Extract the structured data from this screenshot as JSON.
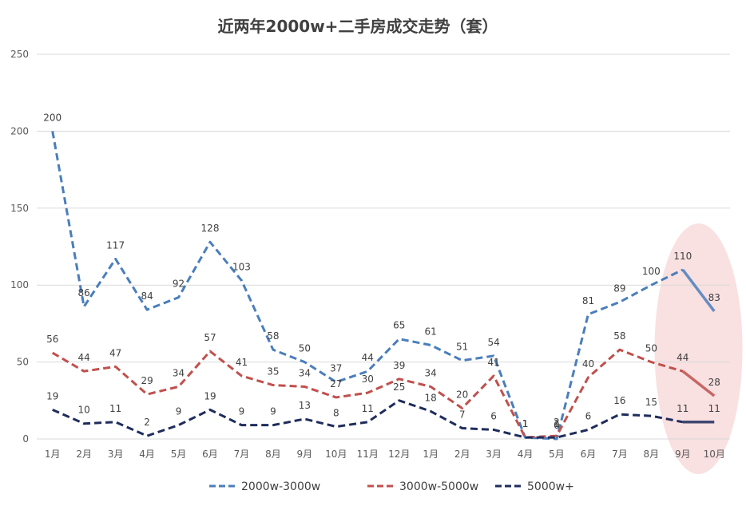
{
  "chart_data": {
    "type": "line",
    "title": "近两年2000w+二手房成交走势（套）",
    "xlabel": "",
    "ylabel": "",
    "ylim": [
      0,
      250
    ],
    "yticks": [
      0,
      50,
      100,
      150,
      200,
      250
    ],
    "grid": true,
    "legend_position": "bottom",
    "categories": [
      "1月",
      "2月",
      "3月",
      "4月",
      "5月",
      "6月",
      "7月",
      "8月",
      "9月",
      "10月",
      "11月",
      "12月",
      "1月",
      "2月",
      "3月",
      "4月",
      "5月",
      "6月",
      "7月",
      "8月",
      "9月",
      "10月"
    ],
    "series": [
      {
        "name": "2000w-3000w",
        "color": "#4a7ebb",
        "values": [
          200,
          86,
          117,
          84,
          92,
          128,
          103,
          58,
          50,
          37,
          44,
          65,
          61,
          51,
          54,
          1,
          0,
          81,
          89,
          100,
          110,
          83
        ]
      },
      {
        "name": "3000w-5000w",
        "color": "#c0504d",
        "values": [
          56,
          44,
          47,
          29,
          34,
          57,
          41,
          35,
          34,
          27,
          30,
          39,
          34,
          20,
          41,
          1,
          2,
          40,
          58,
          50,
          44,
          28
        ]
      },
      {
        "name": "5000w+",
        "color": "#1f2d5c",
        "values": [
          19,
          10,
          11,
          2,
          9,
          19,
          9,
          9,
          13,
          8,
          11,
          25,
          18,
          7,
          6,
          1,
          1,
          6,
          16,
          15,
          11,
          11
        ]
      }
    ],
    "highlight": {
      "shape": "ellipse",
      "color": "#f4c7c8",
      "from_category_index": 20,
      "to_category_index": 21
    }
  }
}
